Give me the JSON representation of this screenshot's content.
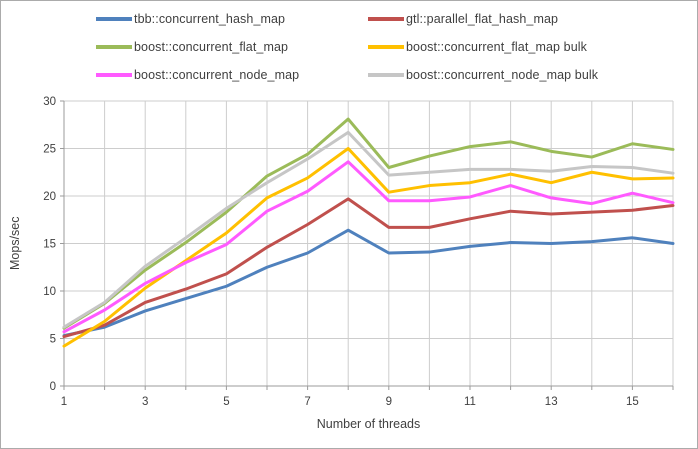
{
  "chart_data": {
    "type": "line",
    "title": "",
    "xlabel": "Number of threads",
    "ylabel": "Mops/sec",
    "x": [
      1,
      2,
      3,
      4,
      5,
      6,
      7,
      8,
      9,
      10,
      11,
      12,
      13,
      14,
      15,
      16
    ],
    "xlim": [
      1,
      16
    ],
    "ylim": [
      0,
      30
    ],
    "ytick_step": 5,
    "yticks": [
      0,
      5,
      10,
      15,
      20,
      25,
      30
    ],
    "xticks_labeled": [
      1,
      3,
      5,
      7,
      9,
      11,
      13,
      15
    ],
    "grid": true,
    "legend_position": "top",
    "grid_color": "#cdcdcd",
    "axis_color": "#9b9b9b",
    "text_color": "#404040",
    "series": [
      {
        "name": "tbb::concurrent_hash_map",
        "color": "#4f81bd",
        "values": [
          5.3,
          6.2,
          7.9,
          9.2,
          10.5,
          12.5,
          14.0,
          16.4,
          14.0,
          14.1,
          14.7,
          15.1,
          15.0,
          15.2,
          15.6,
          15.0
        ]
      },
      {
        "name": "gtl::parallel_flat_hash_map",
        "color": "#c0504d",
        "values": [
          5.2,
          6.4,
          8.8,
          10.2,
          11.8,
          14.6,
          17.0,
          19.7,
          16.7,
          16.7,
          17.6,
          18.4,
          18.1,
          18.3,
          18.5,
          19.0
        ]
      },
      {
        "name": "boost::concurrent_flat_map",
        "color": "#9bbb59",
        "values": [
          6.1,
          8.7,
          12.2,
          15.1,
          18.3,
          22.1,
          24.4,
          28.1,
          23.0,
          24.2,
          25.2,
          25.7,
          24.7,
          24.1,
          25.5,
          24.9
        ]
      },
      {
        "name": "boost::concurrent_flat_map bulk",
        "color": "#ffc000",
        "values": [
          4.2,
          6.8,
          10.3,
          13.2,
          16.1,
          19.8,
          21.9,
          25.0,
          20.4,
          21.1,
          21.4,
          22.3,
          21.4,
          22.5,
          21.8,
          21.9
        ]
      },
      {
        "name": "boost::concurrent_node_map",
        "color": "#ff5aff",
        "values": [
          5.7,
          8.0,
          10.8,
          13.0,
          14.9,
          18.4,
          20.5,
          23.6,
          19.5,
          19.5,
          19.9,
          21.1,
          19.8,
          19.2,
          20.3,
          19.3
        ]
      },
      {
        "name": "boost::concurrent_node_map bulk",
        "color": "#c6c6c6",
        "values": [
          6.2,
          8.8,
          12.6,
          15.6,
          18.7,
          21.4,
          23.9,
          26.7,
          22.2,
          22.5,
          22.8,
          22.8,
          22.6,
          23.1,
          23.0,
          22.4
        ]
      }
    ]
  }
}
